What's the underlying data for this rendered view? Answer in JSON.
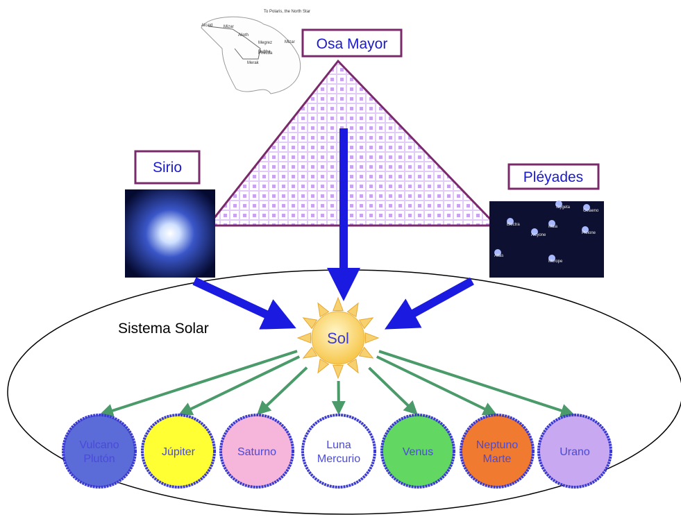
{
  "osa_mayor": {
    "label": "Osa Mayor",
    "stars": [
      "Alcaid",
      "Mizar",
      "Alioth",
      "Megrez",
      "Phecda",
      "Dubhe",
      "Merak",
      "Mizar",
      "To Polaris, the North Star"
    ]
  },
  "sirio": {
    "label": "Sirio"
  },
  "pleyades": {
    "label": "Pléyades",
    "stars": [
      "Alcyone",
      "Atlas",
      "Electra",
      "Maia",
      "Merope",
      "Taygeta",
      "Pleione",
      "Celaeno"
    ]
  },
  "sistema_solar": {
    "label": "Sistema Solar"
  },
  "sol": {
    "label": "Sol"
  },
  "planets": [
    {
      "lines": [
        "Vulcano",
        "Plutón"
      ]
    },
    {
      "lines": [
        "Júpiter"
      ]
    },
    {
      "lines": [
        "Saturno"
      ]
    },
    {
      "lines": [
        "Luna",
        "Mercurio"
      ]
    },
    {
      "lines": [
        "Venus"
      ]
    },
    {
      "lines": [
        "Neptuno",
        "Marte"
      ]
    },
    {
      "lines": [
        "Urano"
      ]
    }
  ]
}
